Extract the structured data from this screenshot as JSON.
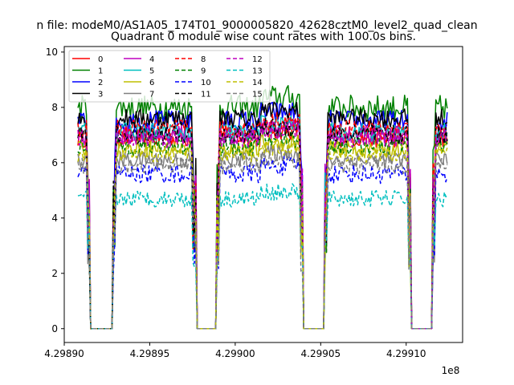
{
  "chart_data": {
    "type": "line",
    "suptitle": "n file: modeM0/AS1A05_174T01_9000005820_42628cztM0_level2_quad_clean",
    "title": "Quadrant 0 module wise count rates with 100.0s bins.",
    "xlabel": "",
    "ylabel": "",
    "x_offset_label": "1e8",
    "xlim": [
      4.2989,
      4.299133
    ],
    "ylim": [
      -0.5,
      10.2
    ],
    "xticks": [
      4.2989,
      4.29895,
      4.299,
      4.29905,
      4.2991
    ],
    "xtick_labels": [
      "4.29890",
      "4.29895",
      "4.29900",
      "4.29905",
      "4.29910"
    ],
    "yticks": [
      0,
      2,
      4,
      6,
      8,
      10
    ],
    "ytick_labels": [
      "0",
      "2",
      "4",
      "6",
      "8",
      "10"
    ],
    "legend_position": "top-left",
    "legend_columns": 4,
    "gaps": [
      [
        4.298915,
        4.298928
      ],
      [
        4.298977,
        4.298989
      ],
      [
        4.29904,
        4.299052
      ],
      [
        4.299103,
        4.299115
      ]
    ],
    "segments": [
      [
        4.298908,
        4.298913
      ],
      [
        4.298931,
        4.298975
      ],
      [
        4.298992,
        4.299038
      ],
      [
        4.299055,
        4.299101
      ],
      [
        4.299118,
        4.299124
      ]
    ],
    "series": [
      {
        "name": "0",
        "color": "#ff0000",
        "dash": "solid",
        "level": 6.9,
        "noise": 0.35
      },
      {
        "name": "1",
        "color": "#008000",
        "dash": "solid",
        "level": 8.0,
        "noise": 0.45
      },
      {
        "name": "2",
        "color": "#0000ff",
        "dash": "solid",
        "level": 7.5,
        "noise": 0.4
      },
      {
        "name": "3",
        "color": "#000000",
        "dash": "solid",
        "level": 7.6,
        "noise": 0.35
      },
      {
        "name": "4",
        "color": "#bf00bf",
        "dash": "solid",
        "level": 7.0,
        "noise": 0.35
      },
      {
        "name": "5",
        "color": "#00bfbf",
        "dash": "solid",
        "level": 7.1,
        "noise": 0.35
      },
      {
        "name": "6",
        "color": "#bfbf00",
        "dash": "solid",
        "level": 6.5,
        "noise": 0.3
      },
      {
        "name": "7",
        "color": "#808080",
        "dash": "solid",
        "level": 6.1,
        "noise": 0.3
      },
      {
        "name": "8",
        "color": "#ff0000",
        "dash": "dashed",
        "level": 7.2,
        "noise": 0.35
      },
      {
        "name": "9",
        "color": "#008000",
        "dash": "dashed",
        "level": 6.6,
        "noise": 0.35
      },
      {
        "name": "10",
        "color": "#0000ff",
        "dash": "dashed",
        "level": 5.6,
        "noise": 0.35
      },
      {
        "name": "11",
        "color": "#000000",
        "dash": "dashed",
        "level": 7.0,
        "noise": 0.35
      },
      {
        "name": "12",
        "color": "#bf00bf",
        "dash": "dashed",
        "level": 6.9,
        "noise": 0.35
      },
      {
        "name": "13",
        "color": "#00bfbf",
        "dash": "dashed",
        "level": 4.7,
        "noise": 0.3
      },
      {
        "name": "14",
        "color": "#bfbf00",
        "dash": "dashed",
        "level": 6.3,
        "noise": 0.3
      },
      {
        "name": "15",
        "color": "#808080",
        "dash": "dashed",
        "level": 5.9,
        "noise": 0.3
      }
    ]
  }
}
